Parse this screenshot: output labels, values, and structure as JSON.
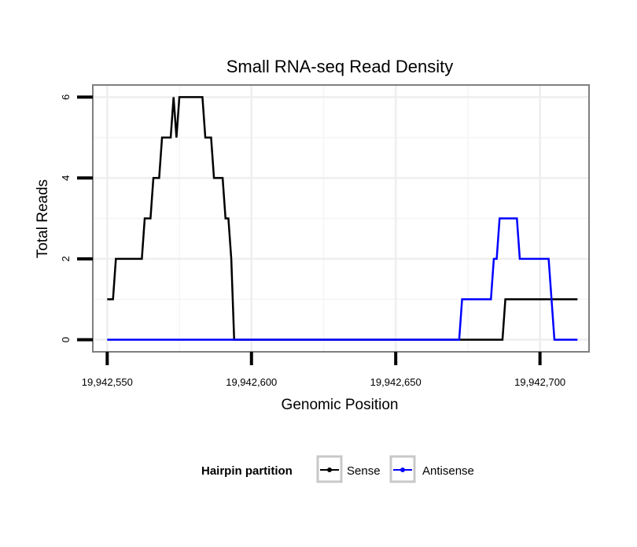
{
  "chart_data": {
    "type": "line",
    "title": "Small RNA-seq Read Density",
    "xlabel": "Genomic Position",
    "ylabel": "Total Reads",
    "xlim": [
      19942545,
      19942717
    ],
    "ylim": [
      -0.3,
      6.3
    ],
    "x_ticks": [
      19942550,
      19942600,
      19942650,
      19942700
    ],
    "x_tick_labels": [
      "19,942,550",
      "19,942,600",
      "19,942,650",
      "19,942,700"
    ],
    "y_ticks": [
      0,
      2,
      4,
      6
    ],
    "y_tick_labels": [
      "0",
      "2",
      "4",
      "6"
    ],
    "grid": true,
    "legend": {
      "title": "Hairpin partition",
      "placement": "bottom"
    },
    "series": [
      {
        "name": "Sense",
        "color": "#000000",
        "x": [
          19942550,
          19942552,
          19942553,
          19942562,
          19942563,
          19942565,
          19942566,
          19942568,
          19942569,
          19942572,
          19942573,
          19942574,
          19942575,
          19942583,
          19942584,
          19942586,
          19942587,
          19942590,
          19942591,
          19942592,
          19942593,
          19942594,
          19942687,
          19942688,
          19942713
        ],
        "values": [
          1,
          1,
          2,
          2,
          3,
          3,
          4,
          4,
          5,
          5,
          6,
          5,
          6,
          6,
          5,
          5,
          4,
          4,
          3,
          3,
          2,
          0,
          0,
          1,
          1
        ]
      },
      {
        "name": "Antisense",
        "color": "#0000ff",
        "x": [
          19942550,
          19942672,
          19942673,
          19942683,
          19942684,
          19942685,
          19942686,
          19942692,
          19942693,
          19942703,
          19942705,
          19942713
        ],
        "values": [
          0,
          0,
          1,
          1,
          2,
          2,
          3,
          3,
          2,
          2,
          0,
          0
        ]
      }
    ]
  }
}
